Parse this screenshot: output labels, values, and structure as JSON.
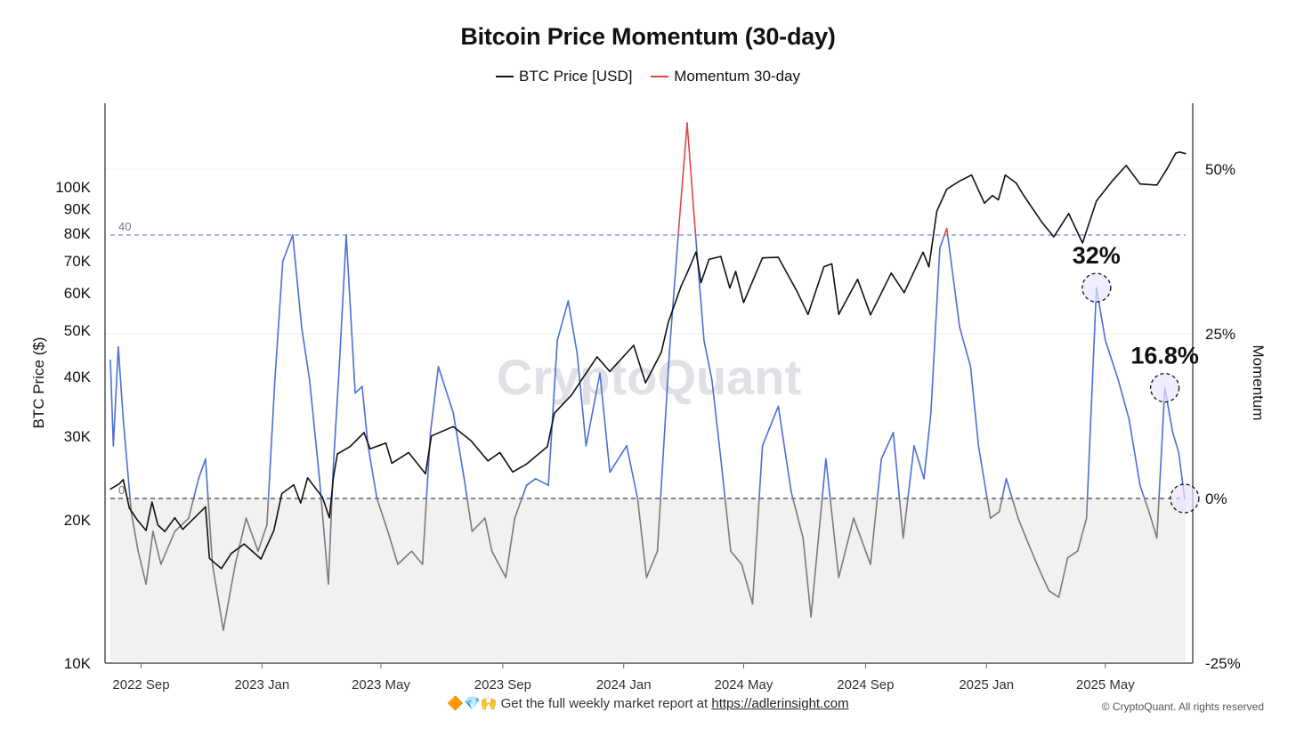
{
  "title": "Bitcoin Price Momentum (30-day)",
  "legend": [
    {
      "label": "BTC Price [USD]",
      "color": "#111111"
    },
    {
      "label": "Momentum 30-day",
      "color": "#e0474c"
    }
  ],
  "watermark": "CryptoQuant",
  "footer": {
    "emoji": "🔶💎🙌",
    "text": "Get the full weekly market report at",
    "link": "https://adlerinsight.com"
  },
  "copyright": "© CryptoQuant. All rights reserved",
  "chart_data": {
    "type": "line",
    "title": "Bitcoin Price Momentum (30-day)",
    "x_start": "2022-08-01",
    "x_end": "2025-07-21",
    "x_ticks": [
      {
        "label": "2022 Sep",
        "date": "2022-09-01"
      },
      {
        "label": "2023 Jan",
        "date": "2023-01-01"
      },
      {
        "label": "2023 May",
        "date": "2023-05-01"
      },
      {
        "label": "2023 Sep",
        "date": "2023-09-01"
      },
      {
        "label": "2024 Jan",
        "date": "2024-01-01"
      },
      {
        "label": "2024 May",
        "date": "2024-05-01"
      },
      {
        "label": "2024 Sep",
        "date": "2024-09-01"
      },
      {
        "label": "2025 Jan",
        "date": "2025-01-01"
      },
      {
        "label": "2025 May",
        "date": "2025-05-01"
      }
    ],
    "left_axis": {
      "label": "BTC Price ($)",
      "scale": "log",
      "range": [
        10000,
        150000
      ],
      "ticks": [
        {
          "label": "10K",
          "value": 10000
        },
        {
          "label": "20K",
          "value": 20000
        },
        {
          "label": "30K",
          "value": 30000
        },
        {
          "label": "40K",
          "value": 40000
        },
        {
          "label": "50K",
          "value": 50000
        },
        {
          "label": "60K",
          "value": 60000
        },
        {
          "label": "70K",
          "value": 70000
        },
        {
          "label": "80K",
          "value": 80000
        },
        {
          "label": "90K",
          "value": 90000
        },
        {
          "label": "100K",
          "value": 100000
        }
      ]
    },
    "right_axis": {
      "label": "Momentum",
      "range": [
        -25,
        60
      ],
      "ticks": [
        {
          "label": "-25%",
          "value": -25
        },
        {
          "label": "0%",
          "value": 0
        },
        {
          "label": "25%",
          "value": 25
        },
        {
          "label": "50%",
          "value": 50
        }
      ]
    },
    "reference_lines": [
      {
        "label": "40",
        "value": 40,
        "color": "#4a6fd6",
        "style": "dashed"
      },
      {
        "label": "0",
        "value": 0,
        "color": "#111111",
        "style": "dashed"
      }
    ],
    "threshold_colors": {
      "above_40": "#e0474c",
      "between": "#4a6fd6",
      "below_0": "#7a7a86"
    },
    "annotations": [
      {
        "label": "32%",
        "date": "2025-04-22",
        "value": 32
      },
      {
        "label": "16.8%",
        "date": "2025-06-30",
        "value": 16.8
      },
      {
        "label": "",
        "date": "2025-07-20",
        "value": 0
      }
    ],
    "series": [
      {
        "name": "BTC Price [USD]",
        "axis": "left",
        "color": "#111111",
        "points": [
          [
            "2022-08-01",
            23200
          ],
          [
            "2022-08-10",
            23800
          ],
          [
            "2022-08-14",
            24300
          ],
          [
            "2022-08-20",
            21200
          ],
          [
            "2022-08-28",
            20000
          ],
          [
            "2022-09-06",
            19000
          ],
          [
            "2022-09-12",
            21800
          ],
          [
            "2022-09-18",
            19500
          ],
          [
            "2022-09-25",
            18900
          ],
          [
            "2022-10-05",
            20200
          ],
          [
            "2022-10-13",
            19100
          ],
          [
            "2022-10-25",
            20200
          ],
          [
            "2022-10-30",
            20700
          ],
          [
            "2022-11-05",
            21300
          ],
          [
            "2022-11-09",
            16600
          ],
          [
            "2022-11-21",
            15800
          ],
          [
            "2022-12-01",
            17000
          ],
          [
            "2022-12-14",
            17800
          ],
          [
            "2022-12-31",
            16550
          ],
          [
            "2023-01-13",
            19000
          ],
          [
            "2023-01-21",
            22700
          ],
          [
            "2023-02-02",
            23700
          ],
          [
            "2023-02-09",
            21700
          ],
          [
            "2023-02-16",
            24500
          ],
          [
            "2023-03-03",
            22300
          ],
          [
            "2023-03-10",
            20200
          ],
          [
            "2023-03-14",
            24500
          ],
          [
            "2023-03-18",
            27500
          ],
          [
            "2023-03-31",
            28500
          ],
          [
            "2023-04-14",
            30500
          ],
          [
            "2023-04-20",
            28200
          ],
          [
            "2023-05-06",
            29000
          ],
          [
            "2023-05-12",
            26300
          ],
          [
            "2023-05-29",
            27700
          ],
          [
            "2023-06-15",
            25000
          ],
          [
            "2023-06-21",
            30000
          ],
          [
            "2023-07-13",
            31400
          ],
          [
            "2023-07-31",
            29300
          ],
          [
            "2023-08-17",
            26600
          ],
          [
            "2023-08-29",
            27700
          ],
          [
            "2023-09-11",
            25200
          ],
          [
            "2023-09-25",
            26200
          ],
          [
            "2023-10-16",
            28500
          ],
          [
            "2023-10-23",
            33500
          ],
          [
            "2023-11-09",
            36500
          ],
          [
            "2023-12-05",
            44000
          ],
          [
            "2023-12-18",
            41000
          ],
          [
            "2024-01-11",
            46500
          ],
          [
            "2024-01-23",
            38800
          ],
          [
            "2024-02-08",
            45000
          ],
          [
            "2024-02-15",
            52000
          ],
          [
            "2024-02-28",
            62000
          ],
          [
            "2024-03-05",
            66000
          ],
          [
            "2024-03-14",
            73100
          ],
          [
            "2024-03-19",
            63000
          ],
          [
            "2024-03-27",
            70500
          ],
          [
            "2024-04-08",
            71500
          ],
          [
            "2024-04-17",
            61400
          ],
          [
            "2024-04-23",
            66500
          ],
          [
            "2024-05-01",
            57200
          ],
          [
            "2024-05-20",
            71000
          ],
          [
            "2024-06-05",
            71200
          ],
          [
            "2024-06-24",
            60300
          ],
          [
            "2024-07-05",
            54000
          ],
          [
            "2024-07-21",
            68000
          ],
          [
            "2024-07-29",
            69000
          ],
          [
            "2024-08-05",
            54000
          ],
          [
            "2024-08-24",
            64000
          ],
          [
            "2024-09-06",
            53900
          ],
          [
            "2024-09-27",
            66000
          ],
          [
            "2024-10-10",
            60000
          ],
          [
            "2024-10-29",
            73000
          ],
          [
            "2024-11-04",
            68000
          ],
          [
            "2024-11-12",
            89000
          ],
          [
            "2024-11-22",
            99000
          ],
          [
            "2024-12-05",
            103000
          ],
          [
            "2024-12-17",
            106000
          ],
          [
            "2024-12-30",
            92500
          ],
          [
            "2025-01-07",
            96000
          ],
          [
            "2025-01-13",
            94000
          ],
          [
            "2025-01-20",
            106000
          ],
          [
            "2025-01-31",
            102000
          ],
          [
            "2025-02-07",
            96500
          ],
          [
            "2025-02-26",
            84300
          ],
          [
            "2025-03-10",
            78600
          ],
          [
            "2025-03-25",
            88000
          ],
          [
            "2025-04-08",
            76300
          ],
          [
            "2025-04-22",
            93500
          ],
          [
            "2025-05-08",
            103000
          ],
          [
            "2025-05-22",
            111000
          ],
          [
            "2025-06-05",
            101500
          ],
          [
            "2025-06-22",
            101000
          ],
          [
            "2025-07-02",
            109000
          ],
          [
            "2025-07-11",
            117800
          ],
          [
            "2025-07-15",
            118500
          ],
          [
            "2025-07-21",
            117500
          ]
        ]
      },
      {
        "name": "Momentum 30-day",
        "axis": "right",
        "unit": "%",
        "points": [
          [
            "2022-08-01",
            21
          ],
          [
            "2022-08-04",
            8
          ],
          [
            "2022-08-09",
            23
          ],
          [
            "2022-08-14",
            12
          ],
          [
            "2022-08-22",
            -2
          ],
          [
            "2022-08-29",
            -8
          ],
          [
            "2022-09-06",
            -13
          ],
          [
            "2022-09-13",
            -5
          ],
          [
            "2022-09-21",
            -10
          ],
          [
            "2022-10-05",
            -5
          ],
          [
            "2022-10-19",
            -3
          ],
          [
            "2022-10-29",
            3
          ],
          [
            "2022-11-05",
            6
          ],
          [
            "2022-11-12",
            -10
          ],
          [
            "2022-11-23",
            -20
          ],
          [
            "2022-12-05",
            -10
          ],
          [
            "2022-12-16",
            -3
          ],
          [
            "2022-12-28",
            -8
          ],
          [
            "2023-01-06",
            -4
          ],
          [
            "2023-01-14",
            18
          ],
          [
            "2023-01-22",
            36
          ],
          [
            "2023-02-01",
            40
          ],
          [
            "2023-02-10",
            26
          ],
          [
            "2023-02-18",
            18
          ],
          [
            "2023-02-28",
            3
          ],
          [
            "2023-03-09",
            -13
          ],
          [
            "2023-03-14",
            5
          ],
          [
            "2023-03-20",
            20
          ],
          [
            "2023-03-27",
            40
          ],
          [
            "2023-04-05",
            16
          ],
          [
            "2023-04-12",
            17
          ],
          [
            "2023-04-18",
            8
          ],
          [
            "2023-04-27",
            0
          ],
          [
            "2023-05-08",
            -5
          ],
          [
            "2023-05-18",
            -10
          ],
          [
            "2023-06-01",
            -8
          ],
          [
            "2023-06-12",
            -10
          ],
          [
            "2023-06-20",
            10
          ],
          [
            "2023-06-28",
            20
          ],
          [
            "2023-07-13",
            13
          ],
          [
            "2023-07-24",
            3
          ],
          [
            "2023-08-01",
            -5
          ],
          [
            "2023-08-14",
            -3
          ],
          [
            "2023-08-21",
            -8
          ],
          [
            "2023-09-04",
            -12
          ],
          [
            "2023-09-13",
            -3
          ],
          [
            "2023-09-25",
            2
          ],
          [
            "2023-10-04",
            3
          ],
          [
            "2023-10-17",
            2
          ],
          [
            "2023-10-26",
            24
          ],
          [
            "2023-11-06",
            30
          ],
          [
            "2023-11-15",
            22
          ],
          [
            "2023-11-24",
            8
          ],
          [
            "2023-12-08",
            19
          ],
          [
            "2023-12-18",
            4
          ],
          [
            "2024-01-04",
            8
          ],
          [
            "2024-01-15",
            0
          ],
          [
            "2024-01-24",
            -12
          ],
          [
            "2024-02-04",
            -8
          ],
          [
            "2024-02-16",
            22
          ],
          [
            "2024-02-25",
            40
          ],
          [
            "2024-03-05",
            57
          ],
          [
            "2024-03-13",
            41
          ],
          [
            "2024-03-22",
            24
          ],
          [
            "2024-03-30",
            18
          ],
          [
            "2024-04-08",
            6
          ],
          [
            "2024-04-18",
            -8
          ],
          [
            "2024-04-29",
            -10
          ],
          [
            "2024-05-10",
            -16
          ],
          [
            "2024-05-20",
            8
          ],
          [
            "2024-06-05",
            14
          ],
          [
            "2024-06-18",
            1
          ],
          [
            "2024-06-30",
            -6
          ],
          [
            "2024-07-08",
            -18
          ],
          [
            "2024-07-23",
            6
          ],
          [
            "2024-08-05",
            -12
          ],
          [
            "2024-08-20",
            -3
          ],
          [
            "2024-09-06",
            -10
          ],
          [
            "2024-09-17",
            6
          ],
          [
            "2024-09-29",
            10
          ],
          [
            "2024-10-09",
            -6
          ],
          [
            "2024-10-20",
            8
          ],
          [
            "2024-10-30",
            3
          ],
          [
            "2024-11-06",
            13
          ],
          [
            "2024-11-15",
            38
          ],
          [
            "2024-11-22",
            41
          ],
          [
            "2024-12-05",
            26
          ],
          [
            "2024-12-16",
            20
          ],
          [
            "2024-12-24",
            8
          ],
          [
            "2025-01-05",
            -3
          ],
          [
            "2025-01-14",
            -2
          ],
          [
            "2025-01-21",
            3
          ],
          [
            "2025-02-02",
            -3
          ],
          [
            "2025-02-10",
            -6
          ],
          [
            "2025-02-21",
            -10
          ],
          [
            "2025-03-05",
            -14
          ],
          [
            "2025-03-15",
            -15
          ],
          [
            "2025-03-24",
            -9
          ],
          [
            "2025-04-03",
            -8
          ],
          [
            "2025-04-12",
            -3
          ],
          [
            "2025-04-22",
            32
          ],
          [
            "2025-05-01",
            24
          ],
          [
            "2025-05-14",
            18
          ],
          [
            "2025-05-25",
            12
          ],
          [
            "2025-06-05",
            2
          ],
          [
            "2025-06-14",
            -2
          ],
          [
            "2025-06-22",
            -6
          ],
          [
            "2025-06-30",
            16.8
          ],
          [
            "2025-07-08",
            10
          ],
          [
            "2025-07-14",
            7
          ],
          [
            "2025-07-20",
            0
          ]
        ]
      }
    ]
  }
}
